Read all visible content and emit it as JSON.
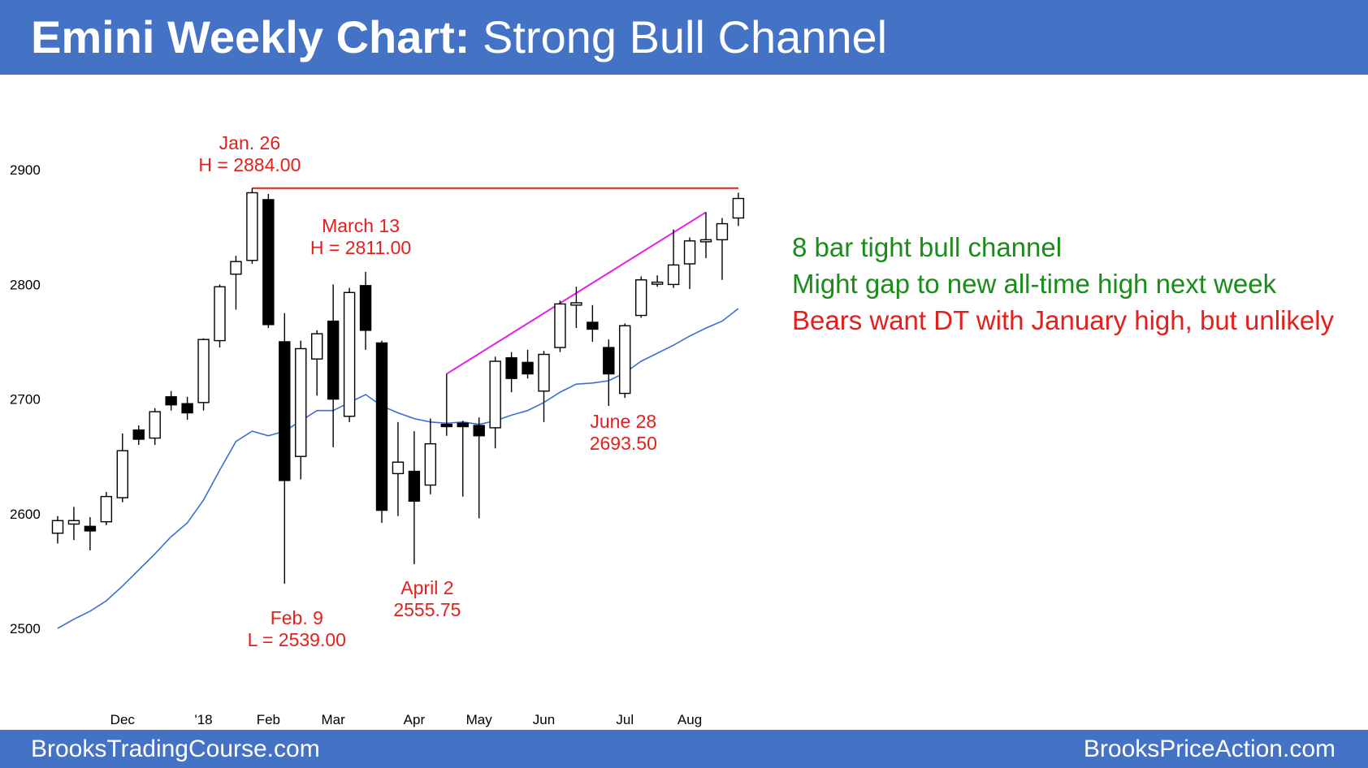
{
  "header": {
    "title_bold": "Emini Weekly Chart:",
    "title_rest": " Strong Bull Channel"
  },
  "footer": {
    "left": "BrooksTradingCourse.com",
    "right": "BrooksPriceAction.com"
  },
  "commentary": [
    {
      "text": "8 bar tight bull channel",
      "color": "green"
    },
    {
      "text": "Might gap to new all-time high next week",
      "color": "green"
    },
    {
      "text": "Bears want DT with January high, but unlikely",
      "color": "red"
    }
  ],
  "colors": {
    "header_bg": "#4472c4",
    "annotation_red": "#e3201c",
    "resistance_line": "#e3201c",
    "channel_line": "#e61ee6",
    "moving_average": "#3b6fd6",
    "bull_text": "#1a8c1a"
  },
  "chart_data": {
    "type": "candlestick",
    "title": "",
    "ylim": [
      2485,
      2935
    ],
    "y_ticks": [
      2500,
      2600,
      2700,
      2800,
      2900
    ],
    "x_ticks": [
      {
        "label": "Dec",
        "bar": 4
      },
      {
        "label": "'18",
        "bar": 9
      },
      {
        "label": "Feb",
        "bar": 13
      },
      {
        "label": "Mar",
        "bar": 17
      },
      {
        "label": "Apr",
        "bar": 22
      },
      {
        "label": "May",
        "bar": 26
      },
      {
        "label": "Jun",
        "bar": 30
      },
      {
        "label": "Jul",
        "bar": 35
      },
      {
        "label": "Aug",
        "bar": 39
      }
    ],
    "candles": [
      {
        "o": 2583,
        "h": 2598,
        "l": 2574,
        "c": 2594
      },
      {
        "o": 2591,
        "h": 2606,
        "l": 2577,
        "c": 2594
      },
      {
        "o": 2589,
        "h": 2597,
        "l": 2568,
        "c": 2585
      },
      {
        "o": 2593,
        "h": 2619,
        "l": 2590,
        "c": 2615
      },
      {
        "o": 2614,
        "h": 2670,
        "l": 2610,
        "c": 2655
      },
      {
        "o": 2673,
        "h": 2677,
        "l": 2660,
        "c": 2665
      },
      {
        "o": 2666,
        "h": 2692,
        "l": 2660,
        "c": 2689
      },
      {
        "o": 2702,
        "h": 2707,
        "l": 2690,
        "c": 2695
      },
      {
        "o": 2696,
        "h": 2702,
        "l": 2682,
        "c": 2688
      },
      {
        "o": 2697,
        "h": 2753,
        "l": 2690,
        "c": 2752
      },
      {
        "o": 2751,
        "h": 2800,
        "l": 2745,
        "c": 2798
      },
      {
        "o": 2809,
        "h": 2825,
        "l": 2778,
        "c": 2820
      },
      {
        "o": 2821,
        "h": 2884,
        "l": 2818,
        "c": 2880
      },
      {
        "o": 2874,
        "h": 2879,
        "l": 2762,
        "c": 2765
      },
      {
        "o": 2750,
        "h": 2775,
        "l": 2539,
        "c": 2629
      },
      {
        "o": 2650,
        "h": 2751,
        "l": 2630,
        "c": 2744
      },
      {
        "o": 2735,
        "h": 2760,
        "l": 2703,
        "c": 2757
      },
      {
        "o": 2768,
        "h": 2800,
        "l": 2658,
        "c": 2700
      },
      {
        "o": 2685,
        "h": 2797,
        "l": 2680,
        "c": 2793
      },
      {
        "o": 2799,
        "h": 2811,
        "l": 2743,
        "c": 2760
      },
      {
        "o": 2749,
        "h": 2751,
        "l": 2592,
        "c": 2603
      },
      {
        "o": 2635,
        "h": 2680,
        "l": 2598,
        "c": 2645
      },
      {
        "o": 2637,
        "h": 2672,
        "l": 2556,
        "c": 2611
      },
      {
        "o": 2625,
        "h": 2683,
        "l": 2617,
        "c": 2661
      },
      {
        "o": 2678,
        "h": 2722,
        "l": 2668,
        "c": 2676
      },
      {
        "o": 2679,
        "h": 2681,
        "l": 2615,
        "c": 2676
      },
      {
        "o": 2677,
        "h": 2684,
        "l": 2596,
        "c": 2668
      },
      {
        "o": 2675,
        "h": 2737,
        "l": 2657,
        "c": 2733
      },
      {
        "o": 2736,
        "h": 2741,
        "l": 2706,
        "c": 2718
      },
      {
        "o": 2732,
        "h": 2743,
        "l": 2718,
        "c": 2722
      },
      {
        "o": 2707,
        "h": 2742,
        "l": 2680,
        "c": 2739
      },
      {
        "o": 2745,
        "h": 2786,
        "l": 2741,
        "c": 2783
      },
      {
        "o": 2782,
        "h": 2798,
        "l": 2762,
        "c": 2784
      },
      {
        "o": 2767,
        "h": 2782,
        "l": 2750,
        "c": 2761
      },
      {
        "o": 2745,
        "h": 2752,
        "l": 2694,
        "c": 2722
      },
      {
        "o": 2705,
        "h": 2766,
        "l": 2701,
        "c": 2764
      },
      {
        "o": 2773,
        "h": 2807,
        "l": 2771,
        "c": 2804
      },
      {
        "o": 2802,
        "h": 2808,
        "l": 2798,
        "c": 2802
      },
      {
        "o": 2800,
        "h": 2848,
        "l": 2797,
        "c": 2817
      },
      {
        "o": 2818,
        "h": 2841,
        "l": 2796,
        "c": 2838
      },
      {
        "o": 2838,
        "h": 2863,
        "l": 2823,
        "c": 2839
      },
      {
        "o": 2839,
        "h": 2858,
        "l": 2804,
        "c": 2853
      },
      {
        "o": 2858,
        "h": 2880,
        "l": 2851,
        "c": 2875
      }
    ],
    "moving_average": [
      2500,
      2508,
      2515,
      2524,
      2537,
      2551,
      2565,
      2580,
      2592,
      2612,
      2638,
      2663,
      2672,
      2668,
      2672,
      2681,
      2690,
      2690,
      2697,
      2704,
      2694,
      2688,
      2683,
      2680,
      2679,
      2680,
      2678,
      2681,
      2686,
      2690,
      2697,
      2706,
      2713,
      2714,
      2716,
      2723,
      2733,
      2740,
      2747,
      2755,
      2762,
      2768,
      2779
    ],
    "lines": [
      {
        "name": "resistance",
        "from_bar": 12,
        "to_bar": 42,
        "y1": 2884,
        "y2": 2884,
        "color": "#e3201c"
      },
      {
        "name": "bull-channel",
        "from_bar": 24,
        "to_bar": 40,
        "y1": 2722,
        "y2": 2863,
        "color": "#e61ee6"
      }
    ],
    "annotations": [
      {
        "lines": [
          "Jan. 26",
          "H = 2884.00"
        ],
        "bar": 12
      },
      {
        "lines": [
          "March 13",
          "H = 2811.00"
        ],
        "bar": 19
      },
      {
        "lines": [
          "Feb. 9",
          "L = 2539.00"
        ],
        "bar": 14
      },
      {
        "lines": [
          "April 2",
          "2555.75"
        ],
        "bar": 22
      },
      {
        "lines": [
          "June 28",
          "2693.50"
        ],
        "bar": 34
      }
    ]
  }
}
